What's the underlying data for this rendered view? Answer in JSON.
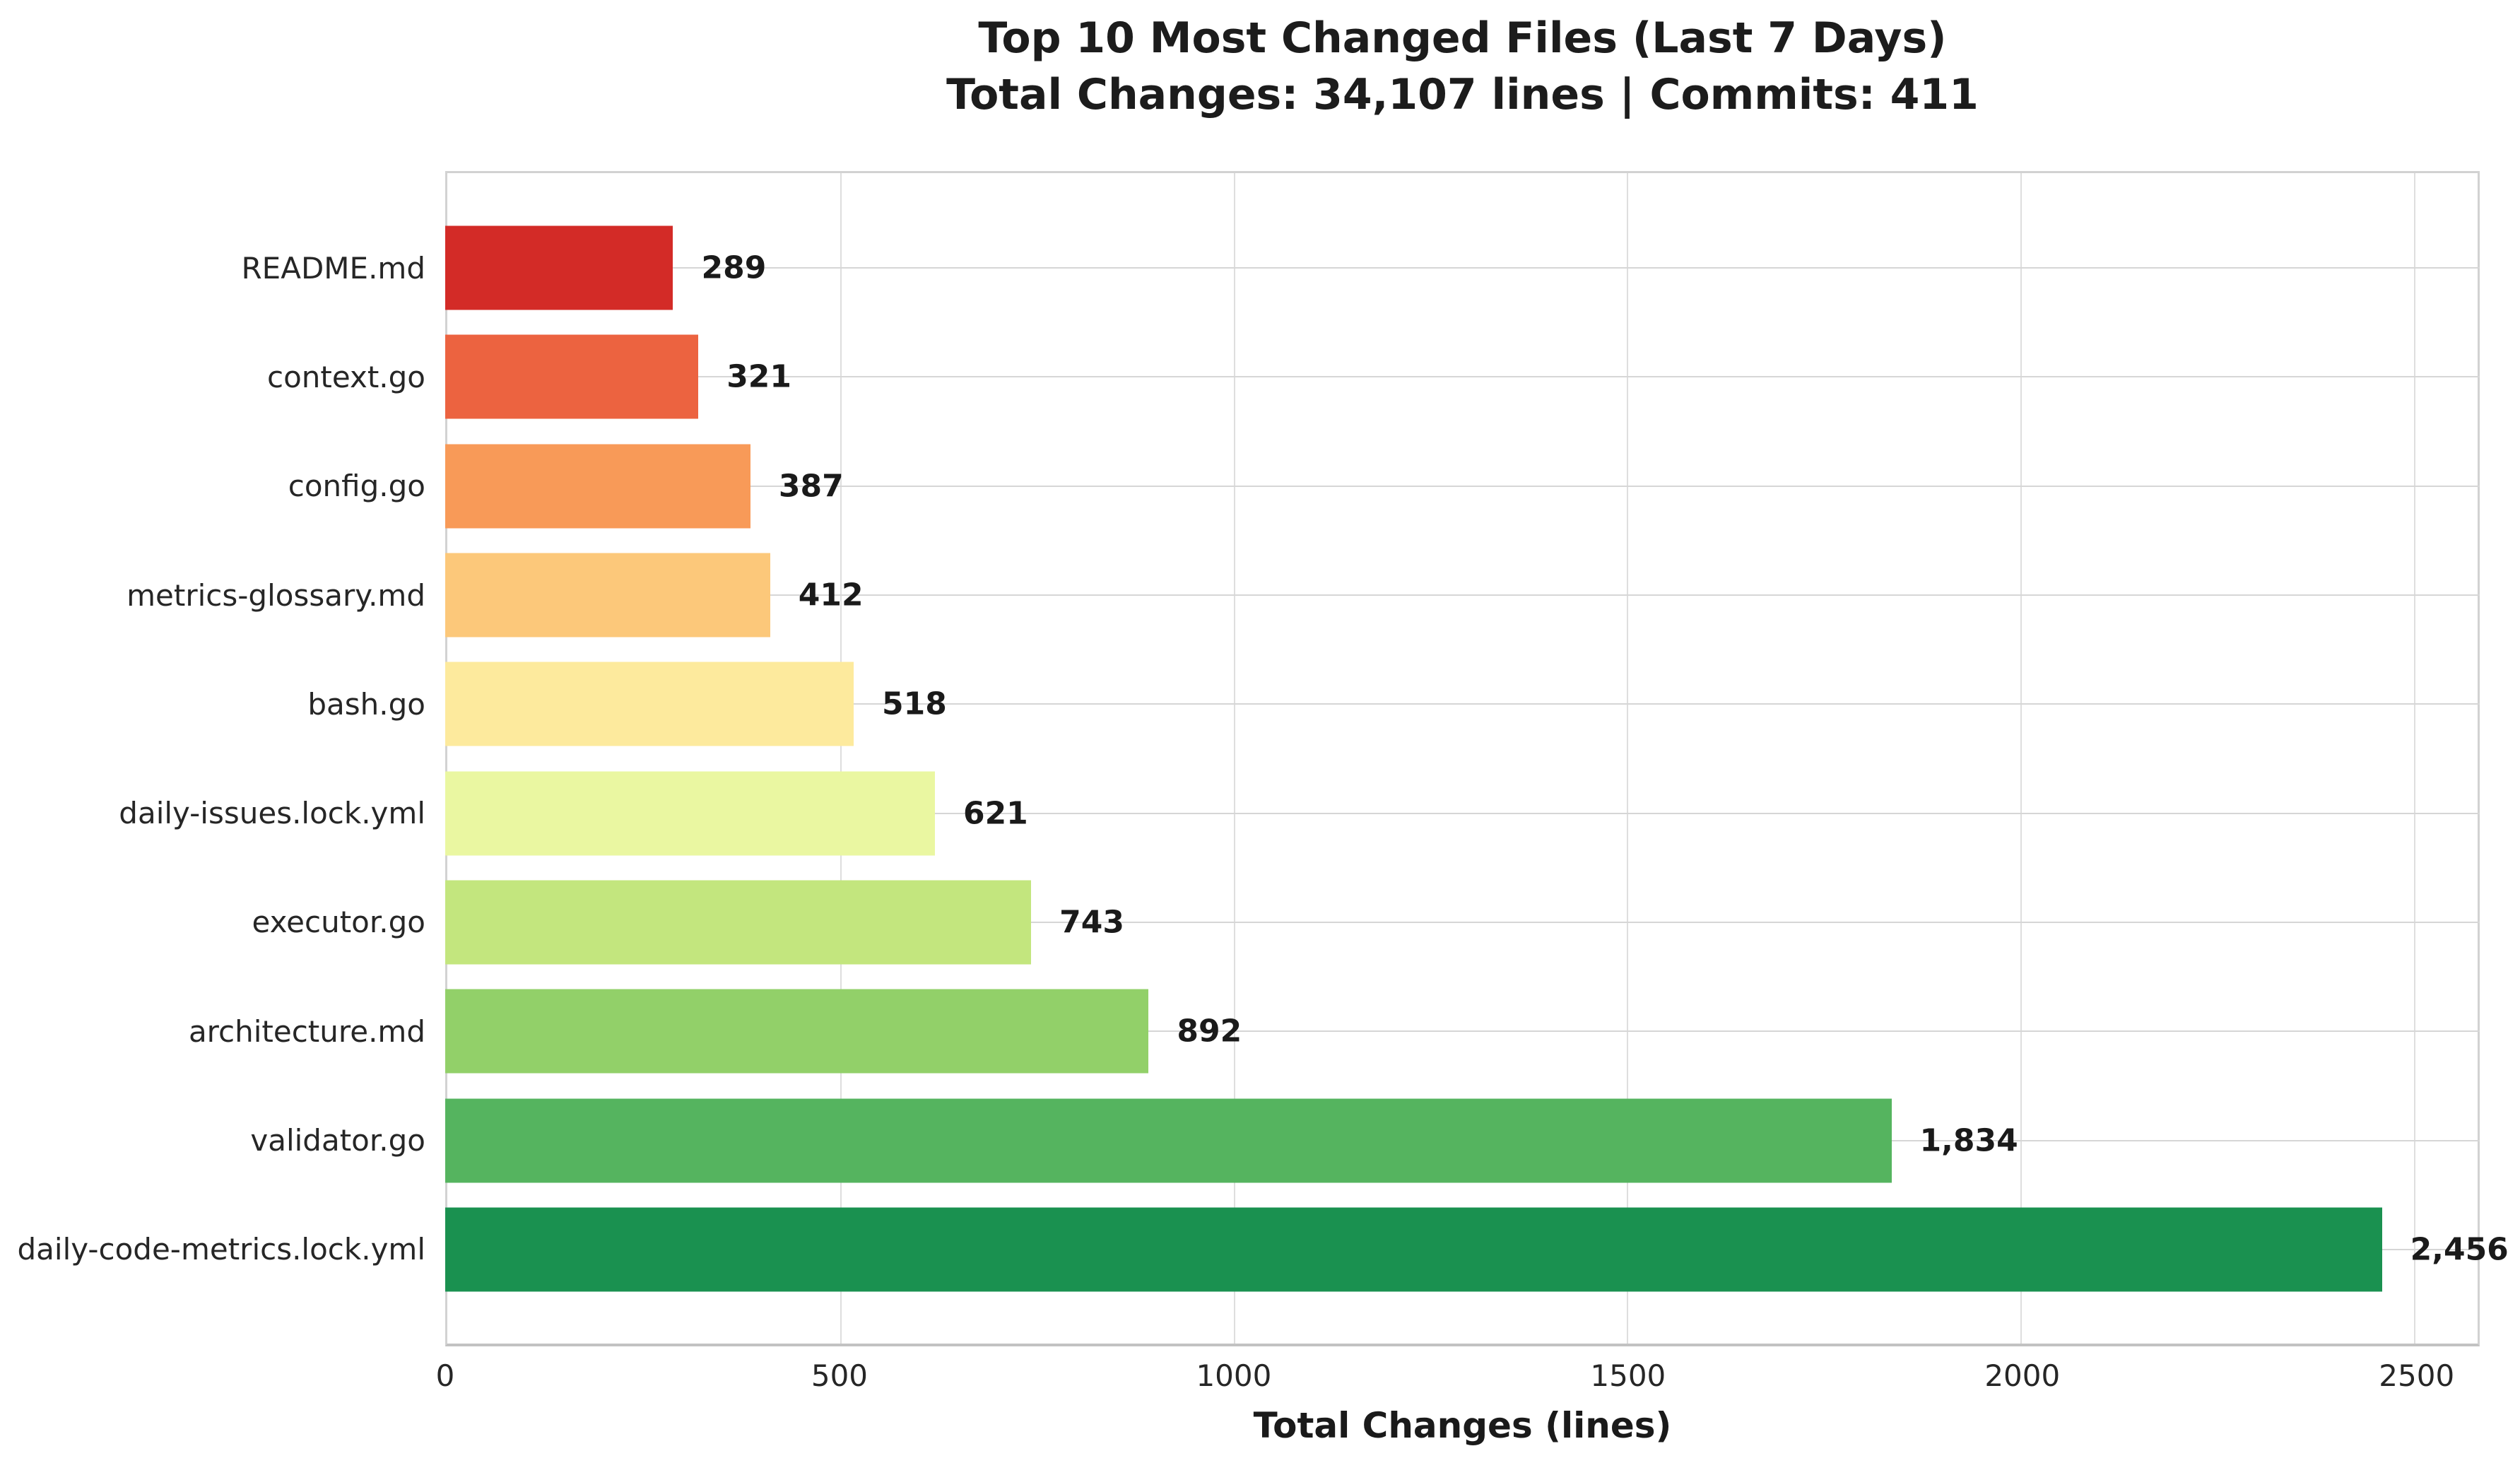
{
  "title": {
    "line1": "Top 10 Most Changed Files (Last 7 Days)",
    "line2": "Total Changes: 34,107 lines | Commits: 411"
  },
  "chart_data": {
    "type": "bar",
    "orientation": "horizontal",
    "title": "Top 10 Most Changed Files (Last 7 Days)",
    "subtitle": "Total Changes: 34,107 lines | Commits: 411",
    "categories": [
      "README.md",
      "context.go",
      "config.go",
      "metrics-glossary.md",
      "bash.go",
      "daily-issues.lock.yml",
      "executor.go",
      "architecture.md",
      "validator.go",
      "daily-code-metrics.lock.yml"
    ],
    "values": [
      289,
      321,
      387,
      412,
      518,
      621,
      743,
      892,
      1834,
      2456
    ],
    "value_labels": [
      "289",
      "321",
      "387",
      "412",
      "518",
      "621",
      "743",
      "892",
      "1,834",
      "2,456"
    ],
    "bar_colors": [
      "#d32b27",
      "#ec6340",
      "#f89a58",
      "#fcc87a",
      "#fdea9d",
      "#eaf7a1",
      "#c3e67e",
      "#92d069",
      "#55b45f",
      "#1a9150"
    ],
    "xlabel": "Total Changes (lines)",
    "ylabel": "",
    "xlim": [
      0,
      2580
    ],
    "xticks": [
      0,
      500,
      1000,
      1500,
      2000,
      2500
    ],
    "xtick_labels": [
      "0",
      "500",
      "1000",
      "1500",
      "2000",
      "2500"
    ],
    "grid": true,
    "legend": false,
    "summary": {
      "total_changes_lines": "34,107",
      "commits": "411"
    }
  }
}
